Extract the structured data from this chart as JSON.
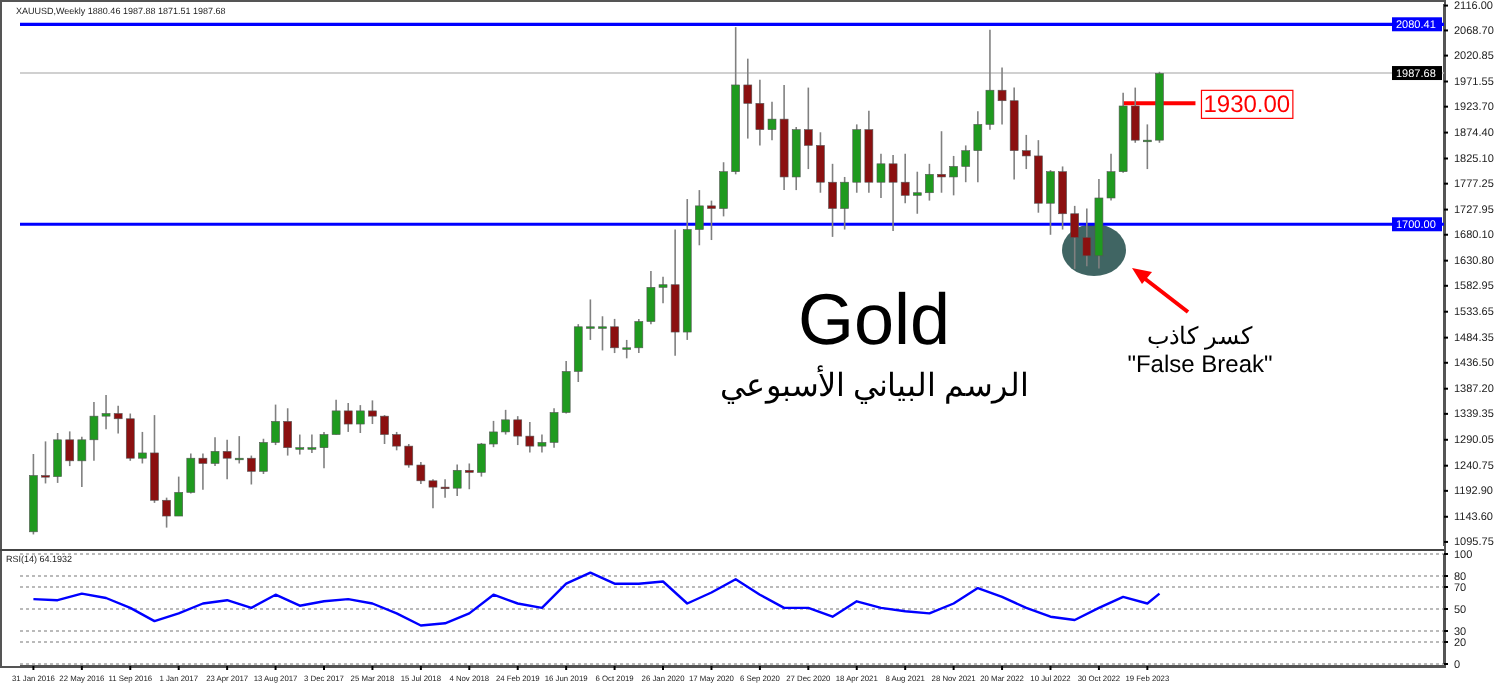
{
  "chart_data": [
    {
      "type": "candlestick",
      "title": "Gold",
      "subtitle": "الرسم البياني الأسبوعي",
      "annotations": [
        "XAUUSD,Weekly 1880.46 1987.88 1871.51 1987.68",
        "كسر كاذب",
        "\"False Break\""
      ],
      "x": [
        "2016-01-31",
        "2016-02-28",
        "2016-03-27",
        "2016-04-24",
        "2016-05-22",
        "2016-06-19",
        "2016-07-17",
        "2016-08-14",
        "2016-09-11",
        "2016-10-09",
        "2016-11-06",
        "2016-12-04",
        "2017-01-01",
        "2017-01-29",
        "2017-02-26",
        "2017-03-26",
        "2017-04-23",
        "2017-05-21",
        "2017-06-18",
        "2017-07-16",
        "2017-08-13",
        "2017-09-10",
        "2017-10-08",
        "2017-11-05",
        "2017-12-03",
        "2017-12-31",
        "2018-01-28",
        "2018-02-25",
        "2018-03-25",
        "2018-04-22",
        "2018-05-20",
        "2018-06-17",
        "2018-07-15",
        "2018-08-12",
        "2018-09-09",
        "2018-10-07",
        "2018-11-04",
        "2018-12-02",
        "2018-12-30",
        "2019-01-27",
        "2019-02-24",
        "2019-03-24",
        "2019-04-21",
        "2019-05-19",
        "2019-06-16",
        "2019-07-14",
        "2019-08-11",
        "2019-09-08",
        "2019-10-06",
        "2019-11-03",
        "2019-12-01",
        "2019-12-29",
        "2020-01-26",
        "2020-02-23",
        "2020-03-22",
        "2020-04-19",
        "2020-05-17",
        "2020-06-14",
        "2020-07-12",
        "2020-08-09",
        "2020-09-06",
        "2020-10-04",
        "2020-11-01",
        "2020-11-29",
        "2020-12-27",
        "2021-01-24",
        "2021-02-21",
        "2021-03-21",
        "2021-04-18",
        "2021-05-16",
        "2021-06-13",
        "2021-07-11",
        "2021-08-08",
        "2021-09-05",
        "2021-10-03",
        "2021-10-31",
        "2021-11-28",
        "2021-12-26",
        "2022-01-23",
        "2022-02-20",
        "2022-03-20",
        "2022-04-17",
        "2022-05-15",
        "2022-06-12",
        "2022-07-10",
        "2022-08-07",
        "2022-09-04",
        "2022-10-02",
        "2022-10-30",
        "2022-11-27",
        "2022-12-25",
        "2023-01-22",
        "2023-02-19",
        "2023-03-19"
      ],
      "ohlc": [
        [
          1115,
          1263,
          1110,
          1222
        ],
        [
          1222,
          1287,
          1207,
          1220
        ],
        [
          1220,
          1303,
          1208,
          1290
        ],
        [
          1290,
          1306,
          1240,
          1250
        ],
        [
          1250,
          1296,
          1200,
          1290
        ],
        [
          1290,
          1362,
          1250,
          1335
        ],
        [
          1335,
          1375,
          1310,
          1340
        ],
        [
          1340,
          1355,
          1302,
          1330
        ],
        [
          1330,
          1340,
          1250,
          1255
        ],
        [
          1255,
          1305,
          1245,
          1265
        ],
        [
          1265,
          1337,
          1170,
          1175
        ],
        [
          1175,
          1180,
          1123,
          1145
        ],
        [
          1145,
          1220,
          1145,
          1190
        ],
        [
          1190,
          1264,
          1188,
          1255
        ],
        [
          1255,
          1264,
          1195,
          1245
        ],
        [
          1245,
          1295,
          1240,
          1268
        ],
        [
          1268,
          1290,
          1215,
          1255
        ],
        [
          1255,
          1297,
          1245,
          1255
        ],
        [
          1255,
          1260,
          1205,
          1230
        ],
        [
          1230,
          1292,
          1225,
          1285
        ],
        [
          1285,
          1357,
          1280,
          1325
        ],
        [
          1325,
          1350,
          1260,
          1275
        ],
        [
          1275,
          1300,
          1262,
          1275
        ],
        [
          1275,
          1300,
          1265,
          1275
        ],
        [
          1275,
          1305,
          1236,
          1300
        ],
        [
          1300,
          1366,
          1300,
          1345
        ],
        [
          1345,
          1360,
          1305,
          1320
        ],
        [
          1320,
          1356,
          1303,
          1345
        ],
        [
          1345,
          1365,
          1320,
          1335
        ],
        [
          1335,
          1337,
          1282,
          1300
        ],
        [
          1300,
          1305,
          1270,
          1278
        ],
        [
          1278,
          1282,
          1237,
          1242
        ],
        [
          1242,
          1248,
          1206,
          1212
        ],
        [
          1212,
          1215,
          1160,
          1200
        ],
        [
          1200,
          1215,
          1180,
          1198
        ],
        [
          1198,
          1243,
          1183,
          1232
        ],
        [
          1232,
          1245,
          1196,
          1228
        ],
        [
          1228,
          1284,
          1220,
          1282
        ],
        [
          1282,
          1326,
          1276,
          1305
        ],
        [
          1305,
          1347,
          1300,
          1328
        ],
        [
          1328,
          1335,
          1280,
          1297
        ],
        [
          1297,
          1324,
          1266,
          1278
        ],
        [
          1278,
          1300,
          1266,
          1285
        ],
        [
          1285,
          1350,
          1275,
          1342
        ],
        [
          1342,
          1440,
          1340,
          1420
        ],
        [
          1420,
          1510,
          1400,
          1505
        ],
        [
          1505,
          1557,
          1480,
          1505
        ],
        [
          1505,
          1525,
          1460,
          1505
        ],
        [
          1505,
          1520,
          1455,
          1465
        ],
        [
          1465,
          1480,
          1445,
          1465
        ],
        [
          1465,
          1520,
          1455,
          1515
        ],
        [
          1515,
          1611,
          1510,
          1580
        ],
        [
          1580,
          1600,
          1550,
          1585
        ],
        [
          1585,
          1690,
          1450,
          1495
        ],
        [
          1495,
          1748,
          1480,
          1690
        ],
        [
          1690,
          1765,
          1660,
          1735
        ],
        [
          1735,
          1745,
          1670,
          1730
        ],
        [
          1730,
          1818,
          1715,
          1800
        ],
        [
          1800,
          2075,
          1795,
          1965
        ],
        [
          1965,
          2015,
          1863,
          1930
        ],
        [
          1930,
          1975,
          1850,
          1880
        ],
        [
          1880,
          1933,
          1860,
          1900
        ],
        [
          1900,
          1965,
          1765,
          1790
        ],
        [
          1790,
          1885,
          1765,
          1880
        ],
        [
          1880,
          1960,
          1805,
          1850
        ],
        [
          1850,
          1875,
          1760,
          1780
        ],
        [
          1780,
          1815,
          1676,
          1730
        ],
        [
          1730,
          1790,
          1690,
          1780
        ],
        [
          1780,
          1890,
          1760,
          1880
        ],
        [
          1880,
          1916,
          1760,
          1780
        ],
        [
          1780,
          1834,
          1750,
          1815
        ],
        [
          1815,
          1832,
          1687,
          1780
        ],
        [
          1780,
          1834,
          1740,
          1755
        ],
        [
          1755,
          1800,
          1720,
          1760
        ],
        [
          1760,
          1815,
          1745,
          1795
        ],
        [
          1795,
          1877,
          1760,
          1790
        ],
        [
          1790,
          1830,
          1755,
          1810
        ],
        [
          1810,
          1850,
          1780,
          1840
        ],
        [
          1840,
          1915,
          1780,
          1890
        ],
        [
          1890,
          2070,
          1880,
          1955
        ],
        [
          1955,
          1998,
          1890,
          1935
        ],
        [
          1935,
          1960,
          1785,
          1840
        ],
        [
          1840,
          1870,
          1805,
          1830
        ],
        [
          1830,
          1860,
          1722,
          1740
        ],
        [
          1740,
          1803,
          1680,
          1800
        ],
        [
          1800,
          1810,
          1690,
          1720
        ],
        [
          1720,
          1735,
          1615,
          1675
        ],
        [
          1675,
          1730,
          1620,
          1640
        ],
        [
          1640,
          1786,
          1616,
          1750
        ],
        [
          1750,
          1834,
          1745,
          1800
        ],
        [
          1800,
          1950,
          1798,
          1925
        ],
        [
          1925,
          1960,
          1855,
          1860
        ],
        [
          1860,
          1890,
          1805,
          1860
        ],
        [
          1860,
          1990,
          1855,
          1987
        ]
      ],
      "xlim": [
        "2015-12-31",
        "2025-01-05"
      ],
      "ylim": [
        1088,
        2119
      ],
      "yticks": [
        {
          "value": 2116,
          "label": "2116.00"
        },
        {
          "value": 2068.7,
          "label": "2068.70"
        },
        2020.85,
        1971.55,
        {
          "value": 1923.7,
          "label": "1923.70"
        },
        {
          "value": 1874.4,
          "label": "1874.40"
        },
        {
          "value": 1825.1,
          "label": "1825.10"
        },
        1777.25,
        1727.95,
        {
          "value": 1680.1,
          "label": "1680.10"
        },
        {
          "value": 1630.8,
          "label": "1630.80"
        },
        1582.95,
        1533.65,
        1484.35,
        {
          "value": 1436.5,
          "label": "1436.50"
        },
        {
          "value": 1387.2,
          "label": "1387.20"
        },
        1339.35,
        1290.05,
        1240.75,
        {
          "value": 1192.9,
          "label": "1192.90"
        },
        {
          "value": 1143.6,
          "label": "1143.60"
        },
        1095.75
      ],
      "tick_labels": "y",
      "ref_lines": [
        {
          "axis": "y",
          "value": 2080.41,
          "label": "2080.41",
          "color": "#0000ff"
        },
        {
          "axis": "y",
          "value": 1700.0,
          "label": "1700.00",
          "color": "#0000ff"
        },
        {
          "axis": "y",
          "value": 1987.68,
          "label": "1987.68",
          "color": "#c0c0c0"
        },
        {
          "axis": "y",
          "value": 1930.0,
          "label": "1930.00",
          "color": "#ff0000"
        }
      ]
    },
    {
      "type": "line",
      "title": "RSI(14) 64.1932",
      "x": [
        "2016-01-31",
        "2016-03-27",
        "2016-05-22",
        "2016-07-17",
        "2016-09-11",
        "2016-11-06",
        "2017-01-01",
        "2017-02-26",
        "2017-04-23",
        "2017-06-18",
        "2017-08-13",
        "2017-10-08",
        "2017-12-03",
        "2018-01-28",
        "2018-03-25",
        "2018-05-20",
        "2018-07-15",
        "2018-09-09",
        "2018-11-04",
        "2018-12-30",
        "2019-02-24",
        "2019-04-21",
        "2019-06-16",
        "2019-08-11",
        "2019-10-06",
        "2019-12-01",
        "2020-01-26",
        "2020-03-22",
        "2020-05-17",
        "2020-07-12",
        "2020-09-06",
        "2020-11-01",
        "2020-12-27",
        "2021-02-21",
        "2021-04-18",
        "2021-06-13",
        "2021-08-08",
        "2021-10-03",
        "2021-11-28",
        "2022-01-23",
        "2022-03-20",
        "2022-05-15",
        "2022-07-10",
        "2022-09-04",
        "2022-10-30",
        "2022-12-25",
        "2023-02-19",
        "2023-03-19"
      ],
      "series": [
        {
          "color": "#0000ff",
          "values": [
            59,
            58,
            64,
            60,
            51,
            39,
            46,
            55,
            58,
            51,
            63,
            53,
            57,
            59,
            55,
            46,
            35,
            37,
            46,
            63,
            55,
            51,
            73,
            83,
            73,
            73,
            75,
            55,
            65,
            77,
            63,
            51,
            51,
            43,
            57,
            51,
            48,
            46,
            55,
            69,
            61,
            51,
            43,
            40,
            51,
            61,
            55,
            64
          ]
        }
      ],
      "xlim": [
        "2015-12-31",
        "2025-01-05"
      ],
      "xticks": [
        {
          "value": "2016-01-31",
          "label": "31 Jan 2016"
        },
        {
          "value": "2016-05-22",
          "label": "22 May 2016"
        },
        {
          "value": "2016-09-11",
          "label": "11 Sep 2016"
        },
        {
          "value": "2017-01-01",
          "label": "1 Jan 2017"
        },
        {
          "value": "2017-04-23",
          "label": "23 Apr 2017"
        },
        {
          "value": "2017-08-13",
          "label": "13 Aug 2017"
        },
        {
          "value": "2017-12-03",
          "label": "3 Dec 2017"
        },
        {
          "value": "2018-03-25",
          "label": "25 Mar 2018"
        },
        {
          "value": "2018-07-15",
          "label": "15 Jul 2018"
        },
        {
          "value": "2018-11-04",
          "label": "4 Nov 2018"
        },
        {
          "value": "2019-02-24",
          "label": "24 Feb 2019"
        },
        {
          "value": "2019-06-16",
          "label": "16 Jun 2019"
        },
        {
          "value": "2019-10-06",
          "label": "6 Oct 2019"
        },
        {
          "value": "2020-01-26",
          "label": "26 Jan 2020"
        },
        {
          "value": "2020-05-17",
          "label": "17 May 2020"
        },
        {
          "value": "2020-09-06",
          "label": "6 Sep 2020"
        },
        {
          "value": "2020-12-27",
          "label": "27 Dec 2020"
        },
        {
          "value": "2021-04-18",
          "label": "18 Apr 2021"
        },
        {
          "value": "2021-08-08",
          "label": "8 Aug 2021"
        },
        {
          "value": "2021-11-28",
          "label": "28 Nov 2021"
        },
        {
          "value": "2022-03-20",
          "label": "20 Mar 2022"
        },
        {
          "value": "2022-07-10",
          "label": "10 Jul 2022"
        },
        {
          "value": "2022-10-30",
          "label": "30 Oct 2022"
        },
        {
          "value": "2023-02-19",
          "label": "19 Feb 2023"
        }
      ],
      "ylim": [
        0,
        100
      ],
      "yticks": [
        0,
        20,
        30,
        50,
        70,
        80,
        100
      ],
      "grid": "y"
    }
  ]
}
